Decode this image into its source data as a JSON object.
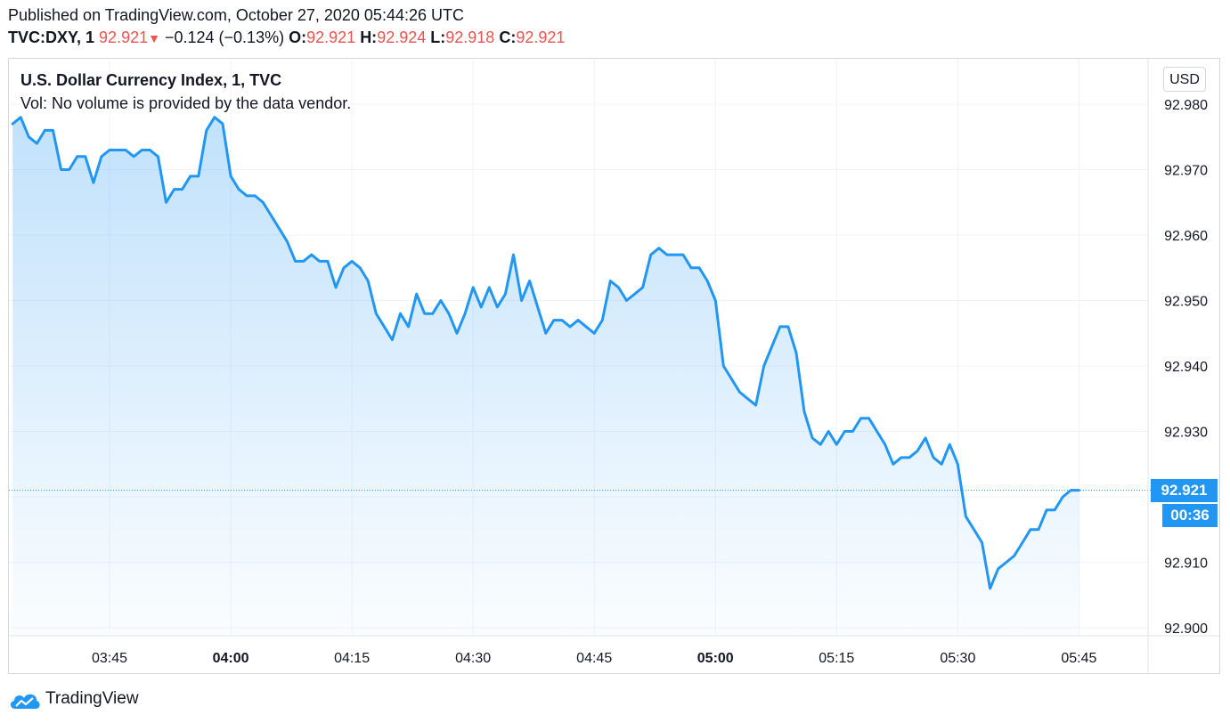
{
  "header": {
    "published": "Published on TradingView.com, October 27, 2020 05:44:26 UTC",
    "symbol": "TVC:DXY, 1",
    "last": "92.921",
    "down_arrow": "▼",
    "change": "−0.124 (−0.13%)",
    "o_label": "O:",
    "o_value": "92.921",
    "h_label": "H:",
    "h_value": "92.924",
    "l_label": "L:",
    "l_value": "92.918",
    "c_label": "C:",
    "c_value": "92.921"
  },
  "legend": {
    "title": "U.S. Dollar Currency Index, 1, TVC",
    "volume": "Vol: No volume is provided by the data vendor."
  },
  "price_axis": {
    "currency": "USD",
    "last_price": "92.921",
    "countdown": "00:36"
  },
  "branding": {
    "name": "TradingView",
    "logo_icon": "tradingview-cloud-icon"
  },
  "colors": {
    "line": "#2196f3",
    "negative": "#ef5350",
    "grid": "#f0f3fa",
    "axis_text": "#131722"
  },
  "chart_data": {
    "type": "area",
    "x_tick_labels": [
      "03:45",
      "04:00",
      "04:15",
      "04:30",
      "04:45",
      "05:00",
      "05:15",
      "05:30",
      "05:45"
    ],
    "x_tick_minutes": [
      225,
      240,
      255,
      270,
      285,
      300,
      315,
      330,
      345
    ],
    "bold_x_ticks": [
      "04:00",
      "05:00"
    ],
    "y_tick_labels": [
      "92.980",
      "92.970",
      "92.960",
      "92.950",
      "92.940",
      "92.930",
      "92.920",
      "92.910",
      "92.900"
    ],
    "ylim": [
      92.9,
      92.98
    ],
    "y_tick_values": [
      92.98,
      92.97,
      92.96,
      92.95,
      92.94,
      92.93,
      92.92,
      92.91,
      92.9
    ],
    "last_value": 92.921,
    "series": [
      {
        "x": [
          213,
          214,
          215,
          216,
          217,
          218,
          219,
          220,
          221,
          222,
          223,
          224,
          225,
          226,
          227,
          228,
          229,
          230,
          231,
          232,
          233,
          234,
          235,
          236,
          237,
          238,
          239,
          240,
          241,
          242,
          243,
          244,
          245,
          246,
          247,
          248,
          249,
          250,
          251,
          252,
          253,
          254,
          255,
          256,
          257,
          258,
          259,
          260,
          261,
          262,
          263,
          264,
          265,
          266,
          267,
          268,
          269,
          270,
          271,
          272,
          273,
          274,
          275,
          276,
          277,
          278,
          279,
          280,
          281,
          282,
          283,
          284,
          285,
          286,
          287,
          288,
          289,
          290,
          291,
          292,
          293,
          294,
          295,
          296,
          297,
          298,
          299,
          300,
          301,
          302,
          303,
          304,
          305,
          306,
          307,
          308,
          309,
          310,
          311,
          312,
          313,
          314,
          315,
          316,
          317,
          318,
          319,
          320,
          321,
          322,
          323,
          324,
          325,
          326,
          327,
          328,
          329,
          330,
          331,
          332,
          333,
          334,
          335,
          336,
          337,
          338,
          339,
          340,
          341,
          342,
          343,
          344,
          345
        ],
        "values": [
          92.977,
          92.978,
          92.975,
          92.974,
          92.976,
          92.976,
          92.97,
          92.97,
          92.972,
          92.972,
          92.968,
          92.972,
          92.973,
          92.973,
          92.973,
          92.972,
          92.973,
          92.973,
          92.972,
          92.965,
          92.967,
          92.967,
          92.969,
          92.969,
          92.976,
          92.978,
          92.977,
          92.969,
          92.967,
          92.966,
          92.966,
          92.965,
          92.963,
          92.961,
          92.959,
          92.956,
          92.956,
          92.957,
          92.956,
          92.956,
          92.952,
          92.955,
          92.956,
          92.955,
          92.953,
          92.948,
          92.946,
          92.944,
          92.948,
          92.946,
          92.951,
          92.948,
          92.948,
          92.95,
          92.948,
          92.945,
          92.948,
          92.952,
          92.949,
          92.952,
          92.949,
          92.951,
          92.957,
          92.95,
          92.953,
          92.949,
          92.945,
          92.947,
          92.947,
          92.946,
          92.947,
          92.946,
          92.945,
          92.947,
          92.953,
          92.952,
          92.95,
          92.951,
          92.952,
          92.957,
          92.958,
          92.957,
          92.957,
          92.957,
          92.955,
          92.955,
          92.953,
          92.95,
          92.94,
          92.938,
          92.936,
          92.935,
          92.934,
          92.94,
          92.943,
          92.946,
          92.946,
          92.942,
          92.933,
          92.929,
          92.928,
          92.93,
          92.928,
          92.93,
          92.93,
          92.932,
          92.932,
          92.93,
          92.928,
          92.925,
          92.926,
          92.926,
          92.927,
          92.929,
          92.926,
          92.925,
          92.928,
          92.925,
          92.917,
          92.915,
          92.913,
          92.906,
          92.909,
          92.91,
          92.911,
          92.913,
          92.915,
          92.915,
          92.918,
          92.918,
          92.92,
          92.921,
          92.921
        ]
      }
    ]
  }
}
